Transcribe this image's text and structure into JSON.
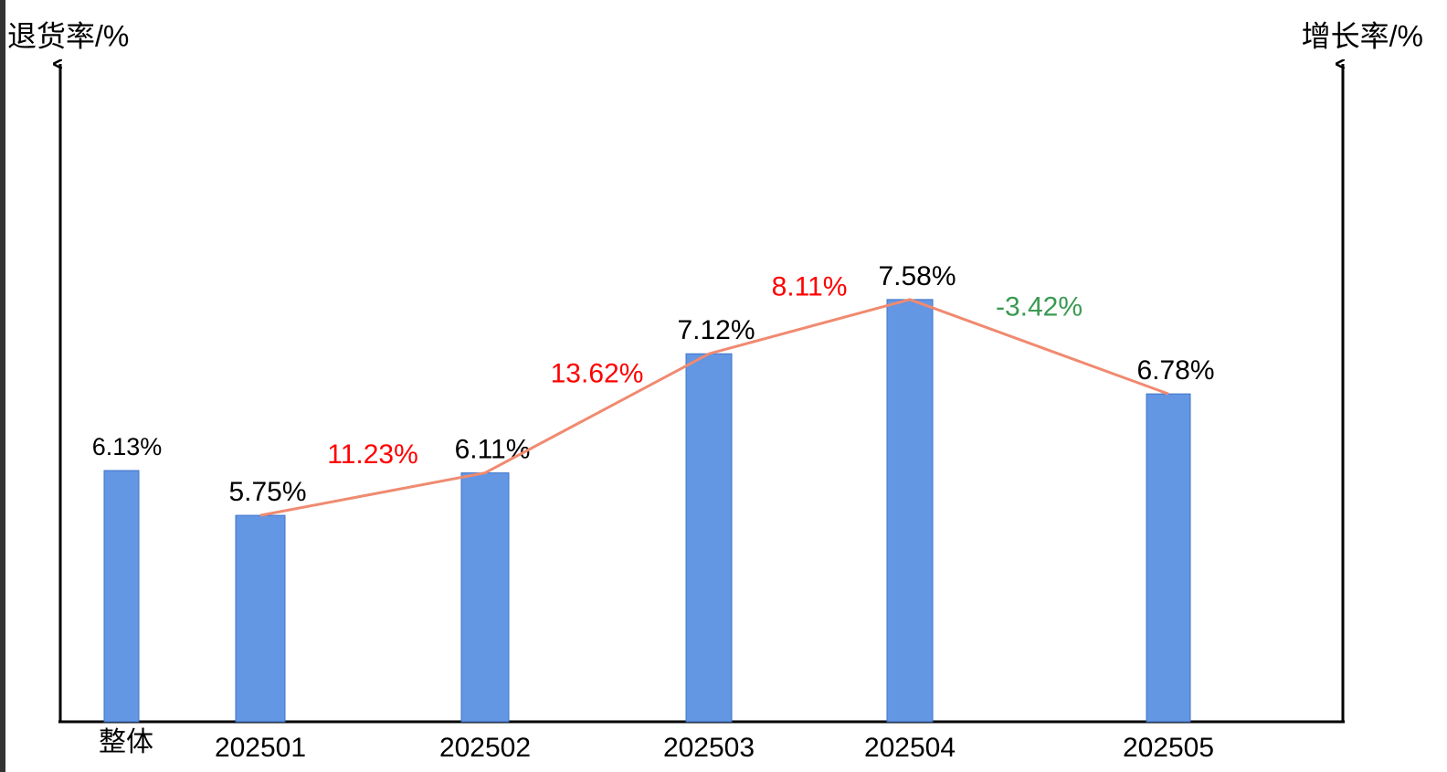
{
  "chart_data": {
    "type": "bar",
    "y_axis_label": "退货率/%",
    "y2_axis_label": "增长率/%",
    "categories": [
      "整体",
      "202501",
      "202502",
      "202503",
      "202504",
      "202505"
    ],
    "values": [
      6.13,
      5.75,
      6.11,
      7.12,
      7.58,
      6.78
    ],
    "value_labels": [
      "6.13%",
      "5.75%",
      "6.11%",
      "7.12%",
      "7.58%",
      "6.78%"
    ],
    "color": "#6396e3",
    "ylim": [
      4,
      9.5
    ],
    "trend_line": true,
    "trend_color": "#f08a70",
    "growth": {
      "values": [
        11.23,
        13.62,
        8.11,
        -3.42
      ],
      "value_labels": [
        "11.23%",
        "13.62%",
        "8.11%",
        "-3.42%"
      ],
      "positive_color": "#ff0000",
      "negative_color": "#3a9a52"
    }
  }
}
